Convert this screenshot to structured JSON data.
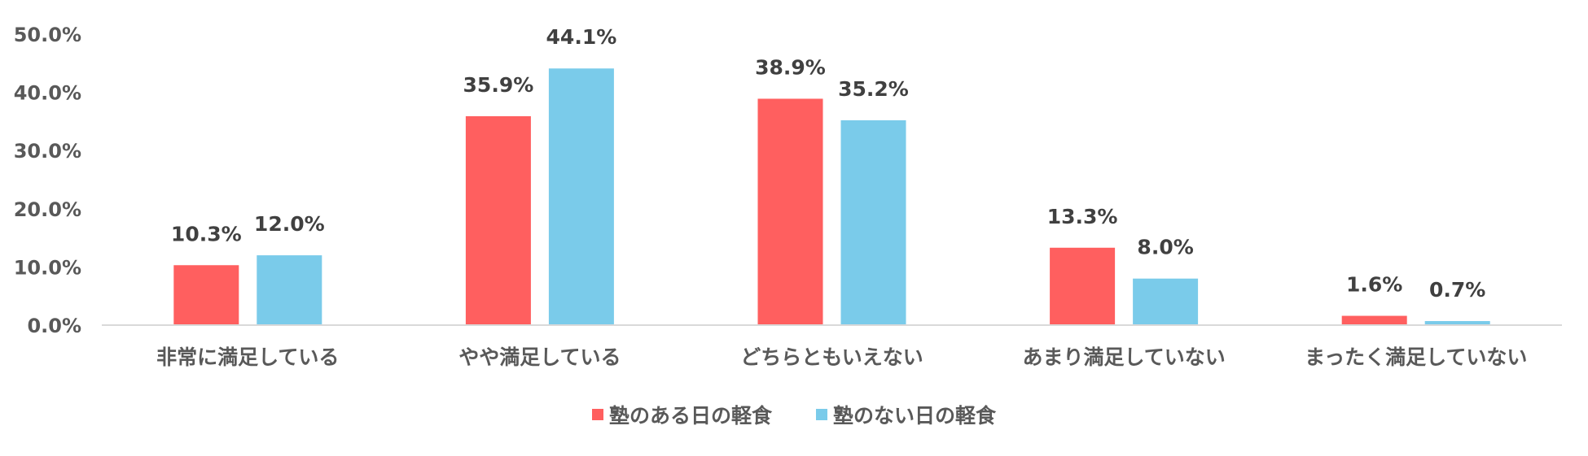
{
  "chart_data": {
    "type": "bar",
    "categories": [
      "非常に満足している",
      "やや満足している",
      "どちらともいえない",
      "あまり満足していない",
      "まったく満足していない"
    ],
    "series": [
      {
        "name": "塾のある日の軽食",
        "values": [
          10.3,
          35.9,
          38.9,
          13.3,
          1.6
        ],
        "labels": [
          "10.3%",
          "35.9%",
          "38.9%",
          "13.3%",
          "1.6%"
        ],
        "color": "#FF5F5F"
      },
      {
        "name": "塾のない日の軽食",
        "values": [
          12.0,
          44.1,
          35.2,
          8.0,
          0.7
        ],
        "labels": [
          "12.0%",
          "44.1%",
          "35.2%",
          "8.0%",
          "0.7%"
        ],
        "color": "#7ACBEA"
      }
    ],
    "y_ticks": [
      "0.0%",
      "10.0%",
      "20.0%",
      "30.0%",
      "40.0%",
      "50.0%"
    ],
    "ylim": [
      0,
      50
    ],
    "grid": false,
    "legend_position": "bottom",
    "title": "",
    "xlabel": "",
    "ylabel": ""
  }
}
